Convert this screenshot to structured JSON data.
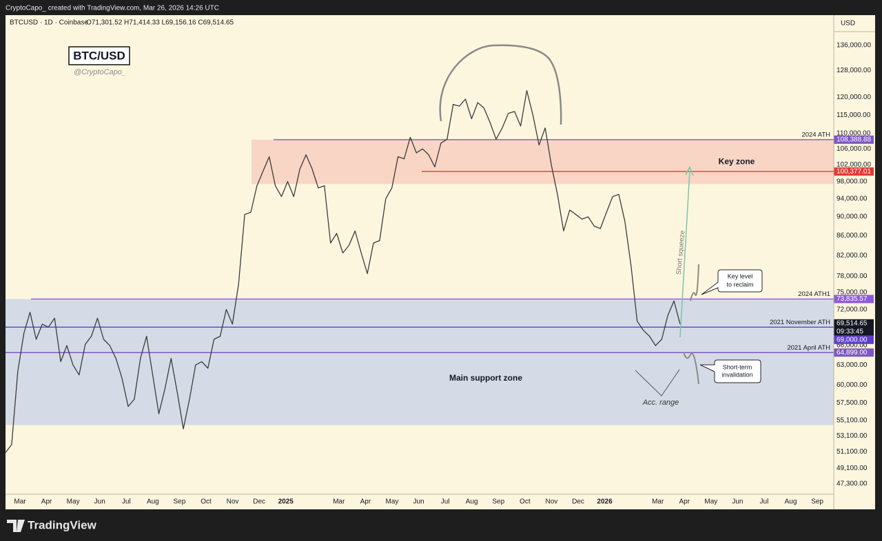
{
  "header": {
    "credit": "CryptoCapo_ created with TradingView.com, Mar 26, 2026 14:26 UTC",
    "brand": "TradingView"
  },
  "chart_data": {
    "type": "line",
    "symbol": "BTCUSD · 1D · Coinbase",
    "ohlc": "O71,301.52 H71,414.33 L69,156.16 C69,514.65",
    "title": "BTC/USD",
    "subtitle": "@CryptoCapo_",
    "currency": "USD",
    "log_scale": true,
    "ylim": [
      46140,
      146300
    ],
    "yticks": [
      {
        "value": 136000,
        "label": "136,000.00"
      },
      {
        "value": 128000,
        "label": "128,000.00"
      },
      {
        "value": 120000,
        "label": "120,000.00"
      },
      {
        "value": 115000,
        "label": "115,000.00"
      },
      {
        "value": 110000,
        "label": "110,000.00"
      },
      {
        "value": 106000,
        "label": "106,000.00"
      },
      {
        "value": 102000,
        "label": "102,000.00"
      },
      {
        "value": 98000,
        "label": "98,000.00"
      },
      {
        "value": 94000,
        "label": "94,000.00"
      },
      {
        "value": 90000,
        "label": "90,000.00"
      },
      {
        "value": 86000,
        "label": "86,000.00"
      },
      {
        "value": 82000,
        "label": "82,000.00"
      },
      {
        "value": 78000,
        "label": "78,000.00"
      },
      {
        "value": 75000,
        "label": "75,000.00"
      },
      {
        "value": 72000,
        "label": "72,000.00"
      },
      {
        "value": 66000,
        "label": "66,000.00"
      },
      {
        "value": 63000,
        "label": "63,000.00"
      },
      {
        "value": 60000,
        "label": "60,000.00"
      },
      {
        "value": 57500,
        "label": "57,500.00"
      },
      {
        "value": 55100,
        "label": "55,100.00"
      },
      {
        "value": 53100,
        "label": "53,100.00"
      },
      {
        "value": 51100,
        "label": "51,100.00"
      },
      {
        "value": 49100,
        "label": "49,100.00"
      },
      {
        "value": 47300,
        "label": "47,300.00"
      }
    ],
    "xticks": [
      {
        "value": "2024-03",
        "label": "Mar"
      },
      {
        "value": "2024-04",
        "label": "Apr"
      },
      {
        "value": "2024-05",
        "label": "May"
      },
      {
        "value": "2024-06",
        "label": "Jun"
      },
      {
        "value": "2024-07",
        "label": "Jul"
      },
      {
        "value": "2024-08",
        "label": "Aug"
      },
      {
        "value": "2024-09",
        "label": "Sep"
      },
      {
        "value": "2024-10",
        "label": "Oct"
      },
      {
        "value": "2024-11",
        "label": "Nov"
      },
      {
        "value": "2024-12",
        "label": "Dec"
      },
      {
        "value": "2025-01",
        "label": "2025"
      },
      {
        "value": "2025-03",
        "label": "Mar"
      },
      {
        "value": "2025-04",
        "label": "Apr"
      },
      {
        "value": "2025-05",
        "label": "May"
      },
      {
        "value": "2025-06",
        "label": "Jun"
      },
      {
        "value": "2025-07",
        "label": "Jul"
      },
      {
        "value": "2025-08",
        "label": "Aug"
      },
      {
        "value": "2025-09",
        "label": "Sep"
      },
      {
        "value": "2025-10",
        "label": "Oct"
      },
      {
        "value": "2025-11",
        "label": "Nov"
      },
      {
        "value": "2025-12",
        "label": "Dec"
      },
      {
        "value": "2026-01",
        "label": "2026"
      },
      {
        "value": "2026-03",
        "label": "Mar"
      },
      {
        "value": "2026-04",
        "label": "Apr"
      },
      {
        "value": "2026-05",
        "label": "May"
      },
      {
        "value": "2026-06",
        "label": "Jun"
      },
      {
        "value": "2026-07",
        "label": "Jul"
      },
      {
        "value": "2026-08",
        "label": "Aug"
      },
      {
        "value": "2026-09",
        "label": "Sep"
      }
    ],
    "series": [
      {
        "color": "#3a3a3a",
        "values": [
          51000,
          52000,
          62000,
          68000,
          71500,
          67000,
          69500,
          69000,
          70500,
          63500,
          66000,
          63000,
          61500,
          66200,
          67500,
          70500,
          67000,
          66000,
          64000,
          61000,
          57000,
          58000,
          64000,
          67500,
          61500,
          56000,
          59500,
          64000,
          59000,
          54000,
          58000,
          63000,
          63500,
          62500,
          67000,
          67500,
          72000,
          69500,
          76500,
          90500,
          91000,
          97000,
          100500,
          104000,
          97000,
          94500,
          98000,
          94500,
          101000,
          104500,
          101000,
          96500,
          97000,
          84500,
          86500,
          82500,
          84000,
          87000,
          82500,
          78500,
          84500,
          85000,
          94000,
          96500,
          104000,
          103500,
          109000,
          105000,
          106000,
          104500,
          101500,
          107500,
          108500,
          118000,
          117500,
          119500,
          114000,
          118500,
          117000,
          113000,
          108500,
          111500,
          115500,
          116000,
          112000,
          122000,
          115000,
          107000,
          111500,
          102000,
          95000,
          87000,
          91500,
          90500,
          89500,
          90000,
          88000,
          87500,
          91000,
          94500,
          95000,
          89000,
          80000,
          70000,
          68500,
          67500,
          66000,
          67000,
          71000,
          73500,
          69514.65
        ]
      }
    ],
    "last_price": {
      "label": "69,514.65",
      "countdown": "09:33:45",
      "color": "#131722"
    },
    "zones": [
      {
        "name": "Key zone",
        "range": [
          97400,
          108388.88
        ],
        "color": "#f8d5c4"
      },
      {
        "name": "Main support zone",
        "range": [
          54500,
          73835.57
        ],
        "color": "#d4dbe6"
      }
    ],
    "levels": [
      {
        "value": 108388.88,
        "label": "108,388.88",
        "name": "2024 ATH",
        "color": "#7e57c2"
      },
      {
        "value": 100377.01,
        "label": "100,377.01",
        "color": "#e53935"
      },
      {
        "value": 73835.57,
        "label": "73,835.57",
        "name": "2024 ATH1",
        "color": "#8e5bd8"
      },
      {
        "value": 69000,
        "label": "69,000.00",
        "name": "2021 November ATH",
        "color": "#5e3fc9"
      },
      {
        "value": 64899,
        "label": "64,899.00",
        "name": "2021 April ATH",
        "color": "#7e57c2"
      }
    ],
    "annotations": {
      "short_squeeze": "Short squeeze",
      "key_level": [
        "Key level",
        "to reclaim"
      ],
      "invalidation": [
        "Short-term",
        "invalidation"
      ],
      "acc_range": "Acc. range"
    }
  }
}
